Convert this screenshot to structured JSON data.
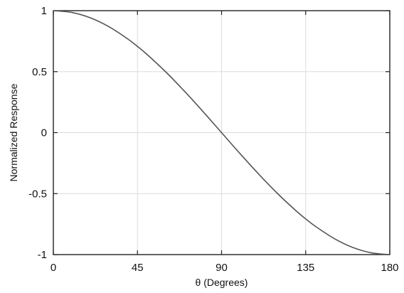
{
  "chart_data": {
    "type": "line",
    "title": "",
    "xlabel": "θ (Degrees)",
    "ylabel": "Normalized Response",
    "xlim": [
      0,
      180
    ],
    "ylim": [
      -1,
      1
    ],
    "x_ticks": [
      0,
      45,
      90,
      135,
      180
    ],
    "y_ticks": [
      1,
      0.5,
      0,
      -0.5,
      -1
    ],
    "x_tick_labels": [
      "0",
      "45",
      "90",
      "135",
      "180"
    ],
    "y_tick_labels": [
      "1",
      "0.5",
      "0",
      "-0.5",
      "-1"
    ],
    "grid": true,
    "legend": "none",
    "line_color": "#555555",
    "series": [
      {
        "x": [
          0,
          10,
          20,
          30,
          40,
          45,
          50,
          60,
          70,
          80,
          90,
          100,
          110,
          120,
          130,
          135,
          140,
          150,
          160,
          170,
          180
        ],
        "values": [
          1,
          0.985,
          0.94,
          0.866,
          0.766,
          0.707,
          0.643,
          0.5,
          0.342,
          0.174,
          0,
          -0.174,
          -0.342,
          -0.5,
          -0.643,
          -0.707,
          -0.766,
          -0.866,
          -0.94,
          -0.985,
          -1
        ]
      }
    ]
  }
}
